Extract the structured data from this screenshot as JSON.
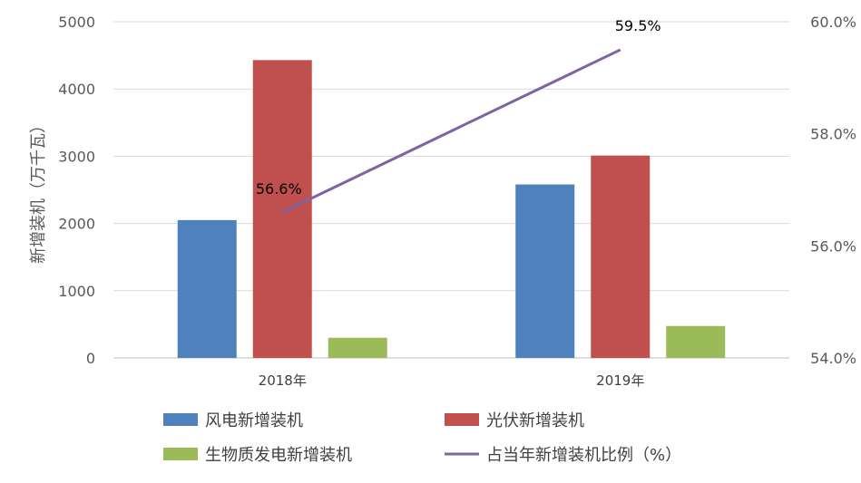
{
  "chart_data": {
    "type": "bar",
    "categories": [
      "2018年",
      "2019年"
    ],
    "ylabel": "新增装机（万千瓦）",
    "ylim": [
      0,
      5000
    ],
    "yticks": [
      "0",
      "1000",
      "2000",
      "3000",
      "4000",
      "5000"
    ],
    "y2lim": [
      54.0,
      60.0
    ],
    "y2ticks": [
      "54.0%",
      "56.0%",
      "58.0%",
      "60.0%"
    ],
    "grid": true,
    "legend_position": "bottom",
    "series": [
      {
        "name": "风电新增装机",
        "type": "bar",
        "color": "#4f81bd",
        "values": [
          2050,
          2580
        ]
      },
      {
        "name": "光伏新增装机",
        "type": "bar",
        "color": "#c0504d",
        "values": [
          4430,
          3010
        ]
      },
      {
        "name": "生物质发电新增装机",
        "type": "bar",
        "color": "#9bbb59",
        "values": [
          300,
          475
        ]
      },
      {
        "name": "占当年新增装机比例（%）",
        "type": "line",
        "axis": "right",
        "color": "#8064a2",
        "values": [
          56.6,
          59.5
        ],
        "labels": [
          "56.6%",
          "59.5%"
        ]
      }
    ]
  }
}
